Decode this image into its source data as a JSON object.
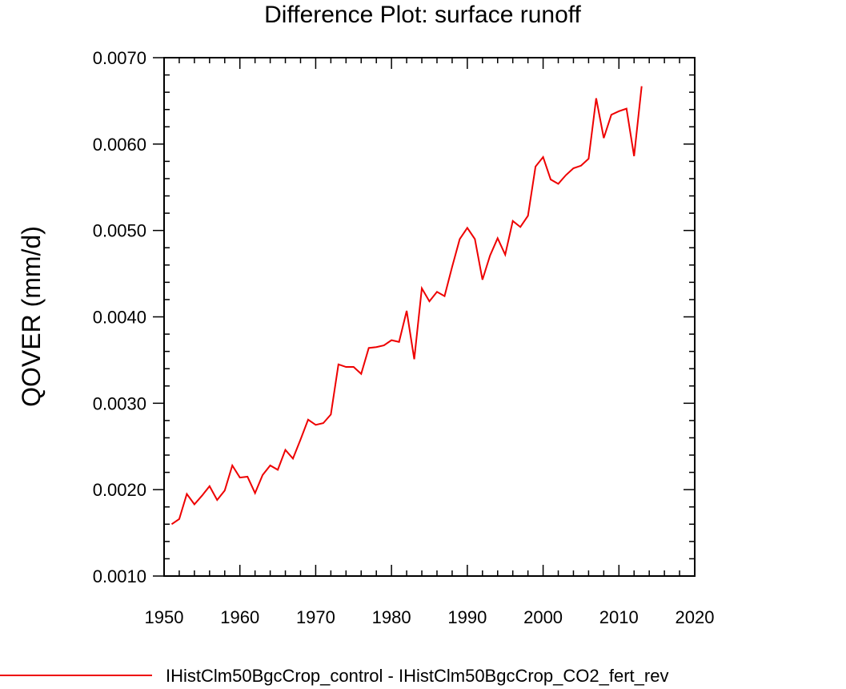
{
  "chart_data": {
    "type": "line",
    "title": "Difference Plot: surface runoff",
    "xlabel": "",
    "ylabel": "QOVER  (mm/d)",
    "xlim": [
      1950,
      2020
    ],
    "ylim": [
      0.001,
      0.007
    ],
    "xticks": [
      "1950",
      "1960",
      "1970",
      "1980",
      "1990",
      "2000",
      "2010",
      "2020"
    ],
    "yticks": [
      "0.0010",
      "0.0020",
      "0.0030",
      "0.0040",
      "0.0050",
      "0.0060",
      "0.0070"
    ],
    "grid": false,
    "legend_position": "bottom",
    "line_color": "#ee0000",
    "series": [
      {
        "name": "IHistClm50BgcCrop_control - IHistClm50BgcCrop_CO2_fert_rev",
        "x": [
          1951,
          1952,
          1953,
          1954,
          1955,
          1956,
          1957,
          1958,
          1959,
          1960,
          1961,
          1962,
          1963,
          1964,
          1965,
          1966,
          1967,
          1968,
          1969,
          1970,
          1971,
          1972,
          1973,
          1974,
          1975,
          1976,
          1977,
          1978,
          1979,
          1980,
          1981,
          1982,
          1983,
          1984,
          1985,
          1986,
          1987,
          1988,
          1989,
          1990,
          1991,
          1992,
          1993,
          1994,
          1995,
          1996,
          1997,
          1998,
          1999,
          2000,
          2001,
          2002,
          2003,
          2004,
          2005,
          2006,
          2007,
          2008,
          2009,
          2010,
          2011,
          2012,
          2013
        ],
        "values": [
          0.0016,
          0.00166,
          0.00195,
          0.00183,
          0.00193,
          0.00204,
          0.00188,
          0.00199,
          0.00228,
          0.00214,
          0.00215,
          0.00196,
          0.00217,
          0.00228,
          0.00223,
          0.00246,
          0.00236,
          0.00258,
          0.00281,
          0.00275,
          0.00277,
          0.00287,
          0.00345,
          0.00342,
          0.00342,
          0.00334,
          0.00364,
          0.00365,
          0.00367,
          0.00373,
          0.00371,
          0.00407,
          0.00351,
          0.00433,
          0.00418,
          0.00429,
          0.00424,
          0.00458,
          0.0049,
          0.00503,
          0.0049,
          0.00443,
          0.00471,
          0.00491,
          0.00472,
          0.00511,
          0.00504,
          0.00517,
          0.00574,
          0.00585,
          0.00559,
          0.00554,
          0.00564,
          0.00572,
          0.00575,
          0.00583,
          0.00653,
          0.00607,
          0.00634,
          0.00638,
          0.00641,
          0.00586,
          0.00667
        ]
      }
    ]
  }
}
